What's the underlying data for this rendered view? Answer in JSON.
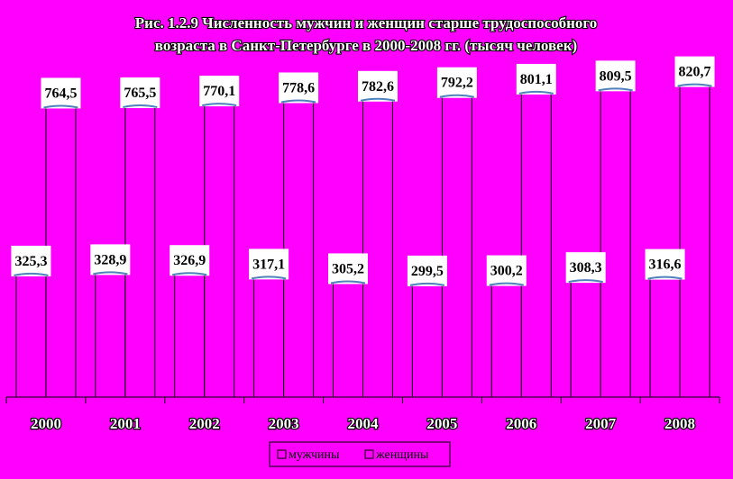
{
  "chart_data": {
    "type": "bar",
    "title_lines": [
      "Рис. 1.2.9 Численность мужчин и женщин старше трудоспособного",
      "возраста в Санкт-Петербурге в 2000-2008 гг. (тысяч человек)"
    ],
    "categories": [
      "2000",
      "2001",
      "2002",
      "2003",
      "2004",
      "2005",
      "2006",
      "2007",
      "2008"
    ],
    "series": [
      {
        "name": "мужчины",
        "values": [
          325.3,
          328.9,
          326.9,
          317.1,
          305.2,
          299.5,
          300.2,
          308.3,
          316.6
        ],
        "labels": [
          "325,3",
          "328,9",
          "326,9",
          "317,1",
          "305,2",
          "299,5",
          "300,2",
          "308,3",
          "316,6"
        ]
      },
      {
        "name": "женщины",
        "values": [
          764.5,
          765.5,
          770.1,
          778.6,
          782.6,
          792.2,
          801.1,
          809.5,
          820.7
        ],
        "labels": [
          "764,5",
          "765,5",
          "770,1",
          "778,6",
          "782,6",
          "792,2",
          "801,1",
          "809,5",
          "820,7"
        ]
      }
    ],
    "ylim": [
      0,
      1000
    ],
    "grid": false,
    "legend_position": "bottom",
    "colors": {
      "background": "#ff00ff",
      "bar_fill": "#ff00ff",
      "bar_stroke": "#000000",
      "label_box": "#ffffff",
      "label_accent": "#4f81bd"
    }
  }
}
